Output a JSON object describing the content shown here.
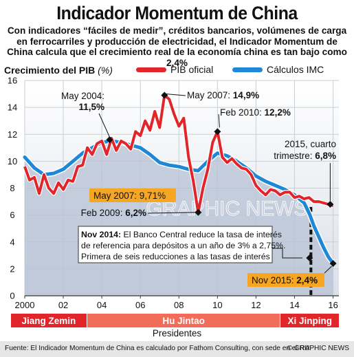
{
  "header": {
    "title": "Indicador Momentum de China",
    "subtitle": "Con indicadores “fáciles de medir”, créditos bancarios, volúmenes de carga en ferrocarriles y producción de electricidad, el Indicador Momentum de China calcula que el crecimiento real de la economía china es tan bajo como 2,4%"
  },
  "chart_data": {
    "type": "line",
    "ylabel": "Crecimiento del PIB",
    "ylabel_unit": "(%)",
    "ylim": [
      0,
      16
    ],
    "yticks": [
      0,
      2,
      4,
      6,
      8,
      10,
      12,
      14,
      16
    ],
    "xlim": [
      2000,
      2016.3
    ],
    "xticks": [
      2000,
      2002,
      2004,
      2006,
      2008,
      2010,
      2012,
      2014,
      2016
    ],
    "xtick_labels": [
      "2000",
      "02",
      "04",
      "06",
      "08",
      "10",
      "12",
      "14",
      "16"
    ],
    "grid": true,
    "legend_position": "top",
    "series": [
      {
        "name": "PIB oficial",
        "color": "#e0262b",
        "x": [
          2000.0,
          2000.25,
          2000.5,
          2000.75,
          2001.0,
          2001.25,
          2001.5,
          2001.75,
          2002.0,
          2002.25,
          2002.5,
          2002.75,
          2003.0,
          2003.25,
          2003.5,
          2003.75,
          2004.0,
          2004.25,
          2004.5,
          2004.75,
          2005.0,
          2005.25,
          2005.5,
          2005.75,
          2006.0,
          2006.25,
          2006.5,
          2006.75,
          2007.0,
          2007.25,
          2007.5,
          2007.75,
          2008.0,
          2008.25,
          2008.5,
          2008.75,
          2009.0,
          2009.25,
          2009.5,
          2009.75,
          2010.0,
          2010.25,
          2010.5,
          2010.75,
          2011.0,
          2011.25,
          2011.5,
          2011.75,
          2012.0,
          2012.25,
          2012.5,
          2012.75,
          2013.0,
          2013.25,
          2013.5,
          2013.75,
          2014.0,
          2014.25,
          2014.5,
          2014.75,
          2015.0,
          2015.25,
          2015.5,
          2015.75,
          2016.0
        ],
        "values": [
          9.6,
          8.6,
          8.8,
          7.6,
          9.0,
          8.0,
          7.6,
          8.4,
          7.9,
          8.6,
          8.5,
          9.6,
          9.7,
          11.0,
          10.5,
          11.3,
          11.5,
          10.5,
          11.7,
          10.8,
          11.5,
          11.3,
          10.9,
          12.2,
          11.9,
          13.0,
          12.3,
          13.7,
          12.5,
          14.9,
          14.6,
          13.5,
          12.6,
          13.2,
          10.3,
          8.5,
          6.2,
          8.0,
          9.4,
          11.4,
          12.2,
          10.3,
          9.9,
          10.2,
          9.8,
          9.5,
          9.4,
          9.0,
          8.2,
          7.8,
          7.5,
          7.9,
          7.8,
          7.5,
          7.7,
          7.7,
          7.3,
          7.4,
          7.2,
          7.3,
          7.0,
          7.0,
          6.9,
          6.8,
          6.7
        ]
      },
      {
        "name": "Cálculos IMC",
        "color": "#1e88d6",
        "x": [
          2000.0,
          2000.5,
          2001.0,
          2001.5,
          2002.0,
          2002.5,
          2003.0,
          2003.5,
          2004.0,
          2004.5,
          2005.0,
          2005.5,
          2006.0,
          2006.5,
          2007.0,
          2007.5,
          2008.0,
          2008.5,
          2009.0,
          2009.5,
          2010.0,
          2010.5,
          2011.0,
          2011.5,
          2012.0,
          2012.5,
          2013.0,
          2013.5,
          2014.0,
          2014.5,
          2014.8,
          2015.0,
          2015.25,
          2015.5,
          2015.75,
          2016.0
        ],
        "values": [
          10.3,
          9.5,
          9.0,
          9.1,
          9.4,
          10.0,
          10.6,
          11.0,
          11.4,
          11.5,
          11.4,
          11.2,
          11.0,
          10.5,
          9.9,
          9.7,
          9.6,
          9.4,
          9.3,
          10.0,
          10.6,
          10.4,
          10.0,
          9.5,
          8.9,
          8.5,
          8.2,
          7.9,
          7.5,
          6.9,
          6.0,
          5.2,
          4.4,
          3.6,
          2.9,
          2.4
        ]
      }
    ],
    "annotations": [
      {
        "id": "may2004",
        "line1": "May 2004:",
        "value": "11,5%"
      },
      {
        "id": "may2007",
        "line1": "May 2007:",
        "value": "14,9%"
      },
      {
        "id": "feb2010",
        "line1": "Feb 2010:",
        "value": "12,2%"
      },
      {
        "id": "q4_2015",
        "line1": "2015, cuarto",
        "line2": "trimestre:",
        "value": "6,8%"
      },
      {
        "id": "imc_may2007",
        "line1": "May 2007:",
        "value": "9,71%"
      },
      {
        "id": "feb2009",
        "line1": "Feb 2009:",
        "value": "6,2%"
      },
      {
        "id": "nov2015",
        "line1": "Nov 2015:",
        "value": "2,4%"
      }
    ],
    "note": {
      "lead": "Nov 2014:",
      "text": "El Banco Central reduce la tasa de interés de referencia para depósitos a un año de 3% a 2,75%. Primera de seis reducciones a las tasas de interés"
    },
    "watermark": "GRAPHIC NEWS"
  },
  "presidents": {
    "label": "Presidentes",
    "items": [
      {
        "name": "Jiang Zemin",
        "start": 2000.0,
        "end": 2003.2,
        "color": "#e0262b"
      },
      {
        "name": "Hu Jintao",
        "start": 2003.2,
        "end": 2013.25,
        "color": "#f26c5a"
      },
      {
        "name": "Xi Jinping",
        "start": 2013.25,
        "end": 2016.3,
        "color": "#e0262b"
      }
    ]
  },
  "footer": {
    "source": "Fuente: El Indicador Momentum de China es calculado por Fathom Consulting, con sede en el RU",
    "copyright": "© GRAPHIC NEWS"
  }
}
